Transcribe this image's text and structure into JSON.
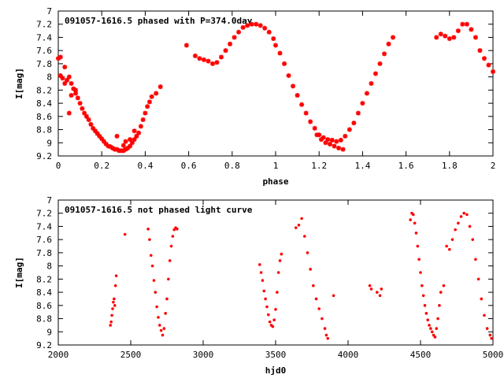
{
  "chart_data": [
    {
      "type": "scatter",
      "title": "091057-1616.5 phased with P=374.0day",
      "xlabel": "phase",
      "ylabel": "I[mag]",
      "xlim": [
        0,
        2
      ],
      "ylim": [
        9.2,
        7.0
      ],
      "y_inverted": true,
      "xticks": [
        "0",
        "0.2",
        "0.4",
        "0.6",
        "0.8",
        "1",
        "1.2",
        "1.4",
        "1.6",
        "1.8",
        "2"
      ],
      "yticks": [
        "7",
        "7.2",
        "7.4",
        "7.6",
        "7.8",
        "8",
        "8.2",
        "8.4",
        "8.6",
        "8.8",
        "9",
        "9.2"
      ],
      "grid": false,
      "marker": "cross",
      "color": "#ff0000",
      "series": [
        {
          "x": [
            0.0,
            0.01,
            0.02,
            0.03,
            0.04,
            0.05,
            0.06,
            0.07,
            0.08,
            0.09,
            0.1,
            0.11,
            0.12,
            0.13,
            0.14,
            0.15,
            0.16,
            0.17,
            0.18,
            0.19,
            0.2,
            0.21,
            0.22,
            0.23,
            0.24,
            0.25,
            0.26,
            0.27,
            0.28,
            0.29,
            0.3,
            0.31,
            0.32,
            0.33,
            0.34,
            0.35,
            0.36,
            0.37,
            0.38,
            0.39,
            0.4,
            0.41,
            0.42,
            0.43,
            0.45,
            0.47,
            0.01,
            0.03,
            0.05,
            0.06,
            0.08,
            0.27,
            0.3,
            0.31,
            0.33,
            0.35,
            0.59,
            0.63,
            0.65,
            0.67,
            0.69,
            0.71,
            0.73,
            0.75,
            0.77,
            0.79,
            0.81,
            0.83,
            0.85,
            0.87,
            0.89,
            0.91,
            0.93,
            0.95,
            0.97,
            0.99,
            1.0,
            1.02,
            1.04,
            1.06,
            1.08,
            1.1,
            1.12,
            1.14,
            1.16,
            1.18,
            1.2,
            1.22,
            1.24,
            1.26,
            1.28,
            1.3,
            1.32,
            1.34,
            1.36,
            1.38,
            1.4,
            1.42,
            1.44,
            1.46,
            1.48,
            1.5,
            1.52,
            1.54,
            1.74,
            1.76,
            1.78,
            1.8,
            1.82,
            1.84,
            1.86,
            1.88,
            1.9,
            1.92,
            1.94,
            1.96,
            1.98,
            2.0,
            1.27,
            1.29,
            1.31,
            1.25,
            1.23,
            1.21,
            1.19
          ],
          "y": [
            7.72,
            7.98,
            8.02,
            8.1,
            8.05,
            8.0,
            8.1,
            8.18,
            8.25,
            8.32,
            8.4,
            8.48,
            8.55,
            8.6,
            8.65,
            8.72,
            8.78,
            8.82,
            8.86,
            8.9,
            8.94,
            8.98,
            9.02,
            9.05,
            9.06,
            9.08,
            9.1,
            9.1,
            9.12,
            9.12,
            9.12,
            9.1,
            9.08,
            9.05,
            9.0,
            8.95,
            8.9,
            8.85,
            8.75,
            8.65,
            8.55,
            8.45,
            8.38,
            8.3,
            8.25,
            8.15,
            7.7,
            7.85,
            8.55,
            8.28,
            8.2,
            8.9,
            9.04,
            8.98,
            8.95,
            8.82,
            7.52,
            7.68,
            7.72,
            7.74,
            7.76,
            7.8,
            7.78,
            7.7,
            7.6,
            7.5,
            7.4,
            7.32,
            7.25,
            7.22,
            7.2,
            7.2,
            7.22,
            7.26,
            7.32,
            7.42,
            7.52,
            7.64,
            7.8,
            7.98,
            8.14,
            8.28,
            8.42,
            8.55,
            8.68,
            8.78,
            8.88,
            8.92,
            8.95,
            8.96,
            8.98,
            8.96,
            8.9,
            8.8,
            8.7,
            8.55,
            8.4,
            8.25,
            8.1,
            7.95,
            7.8,
            7.65,
            7.5,
            7.4,
            7.4,
            7.35,
            7.38,
            7.42,
            7.4,
            7.3,
            7.2,
            7.2,
            7.28,
            7.4,
            7.6,
            7.72,
            7.82,
            7.92,
            9.05,
            9.08,
            9.1,
            9.02,
            9.0,
            8.95,
            8.88
          ]
        }
      ]
    },
    {
      "type": "scatter",
      "title": "091057-1616.5 not phased light curve",
      "xlabel": "hjd0",
      "ylabel": "I[mag]",
      "xlim": [
        2000,
        5000
      ],
      "ylim": [
        9.2,
        7.0
      ],
      "y_inverted": true,
      "xticks": [
        "2000",
        "2500",
        "3000",
        "3500",
        "4000",
        "4500",
        "5000"
      ],
      "yticks": [
        "7",
        "7.2",
        "7.4",
        "7.6",
        "7.8",
        "8",
        "8.2",
        "8.4",
        "8.6",
        "8.8",
        "9",
        "9.2"
      ],
      "grid": false,
      "marker": "dot",
      "color": "#ff0000",
      "series": [
        {
          "x": [
            2360,
            2365,
            2370,
            2375,
            2380,
            2385,
            2390,
            2395,
            2400,
            2460,
            2620,
            2630,
            2640,
            2650,
            2660,
            2670,
            2680,
            2690,
            2700,
            2710,
            2720,
            2730,
            2740,
            2750,
            2760,
            2770,
            2780,
            2790,
            2800,
            2810,
            2820,
            3390,
            3400,
            3410,
            3420,
            3430,
            3440,
            3450,
            3460,
            3470,
            3480,
            3490,
            3500,
            3510,
            3520,
            3530,
            3540,
            3640,
            3660,
            3680,
            3700,
            3720,
            3740,
            3760,
            3780,
            3800,
            3820,
            3840,
            3850,
            3860,
            3900,
            4150,
            4160,
            4200,
            4220,
            4230,
            4430,
            4440,
            4450,
            4460,
            4470,
            4480,
            4490,
            4500,
            4510,
            4520,
            4530,
            4540,
            4550,
            4560,
            4570,
            4580,
            4590,
            4600,
            4610,
            4620,
            4630,
            4640,
            4660,
            4680,
            4700,
            4720,
            4740,
            4760,
            4780,
            4800,
            4820,
            4840,
            4860,
            4880,
            4900,
            4920,
            4940,
            4960,
            4980,
            4990
          ],
          "y": [
            8.9,
            8.85,
            8.75,
            8.65,
            8.55,
            8.5,
            8.6,
            8.3,
            8.15,
            7.52,
            7.44,
            7.6,
            7.84,
            8.0,
            8.22,
            8.4,
            8.62,
            8.78,
            8.9,
            8.98,
            9.05,
            8.95,
            8.72,
            8.5,
            8.2,
            7.92,
            7.7,
            7.55,
            7.45,
            7.42,
            7.44,
            7.98,
            8.1,
            8.22,
            8.38,
            8.5,
            8.62,
            8.74,
            8.85,
            8.9,
            8.92,
            8.82,
            8.66,
            8.4,
            8.1,
            7.92,
            7.82,
            7.42,
            7.38,
            7.28,
            7.55,
            7.8,
            8.05,
            8.3,
            8.5,
            8.65,
            8.8,
            8.95,
            9.05,
            9.1,
            8.45,
            8.3,
            8.35,
            8.4,
            8.45,
            8.35,
            7.3,
            7.2,
            7.22,
            7.35,
            7.5,
            7.7,
            7.9,
            8.1,
            8.3,
            8.45,
            8.6,
            8.72,
            8.82,
            8.9,
            8.95,
            9.0,
            9.05,
            9.08,
            8.95,
            8.8,
            8.6,
            8.4,
            8.3,
            7.7,
            7.75,
            7.6,
            7.45,
            7.35,
            7.25,
            7.2,
            7.22,
            7.4,
            7.6,
            7.9,
            8.2,
            8.5,
            8.75,
            8.95,
            9.05,
            9.1
          ]
        }
      ]
    }
  ]
}
